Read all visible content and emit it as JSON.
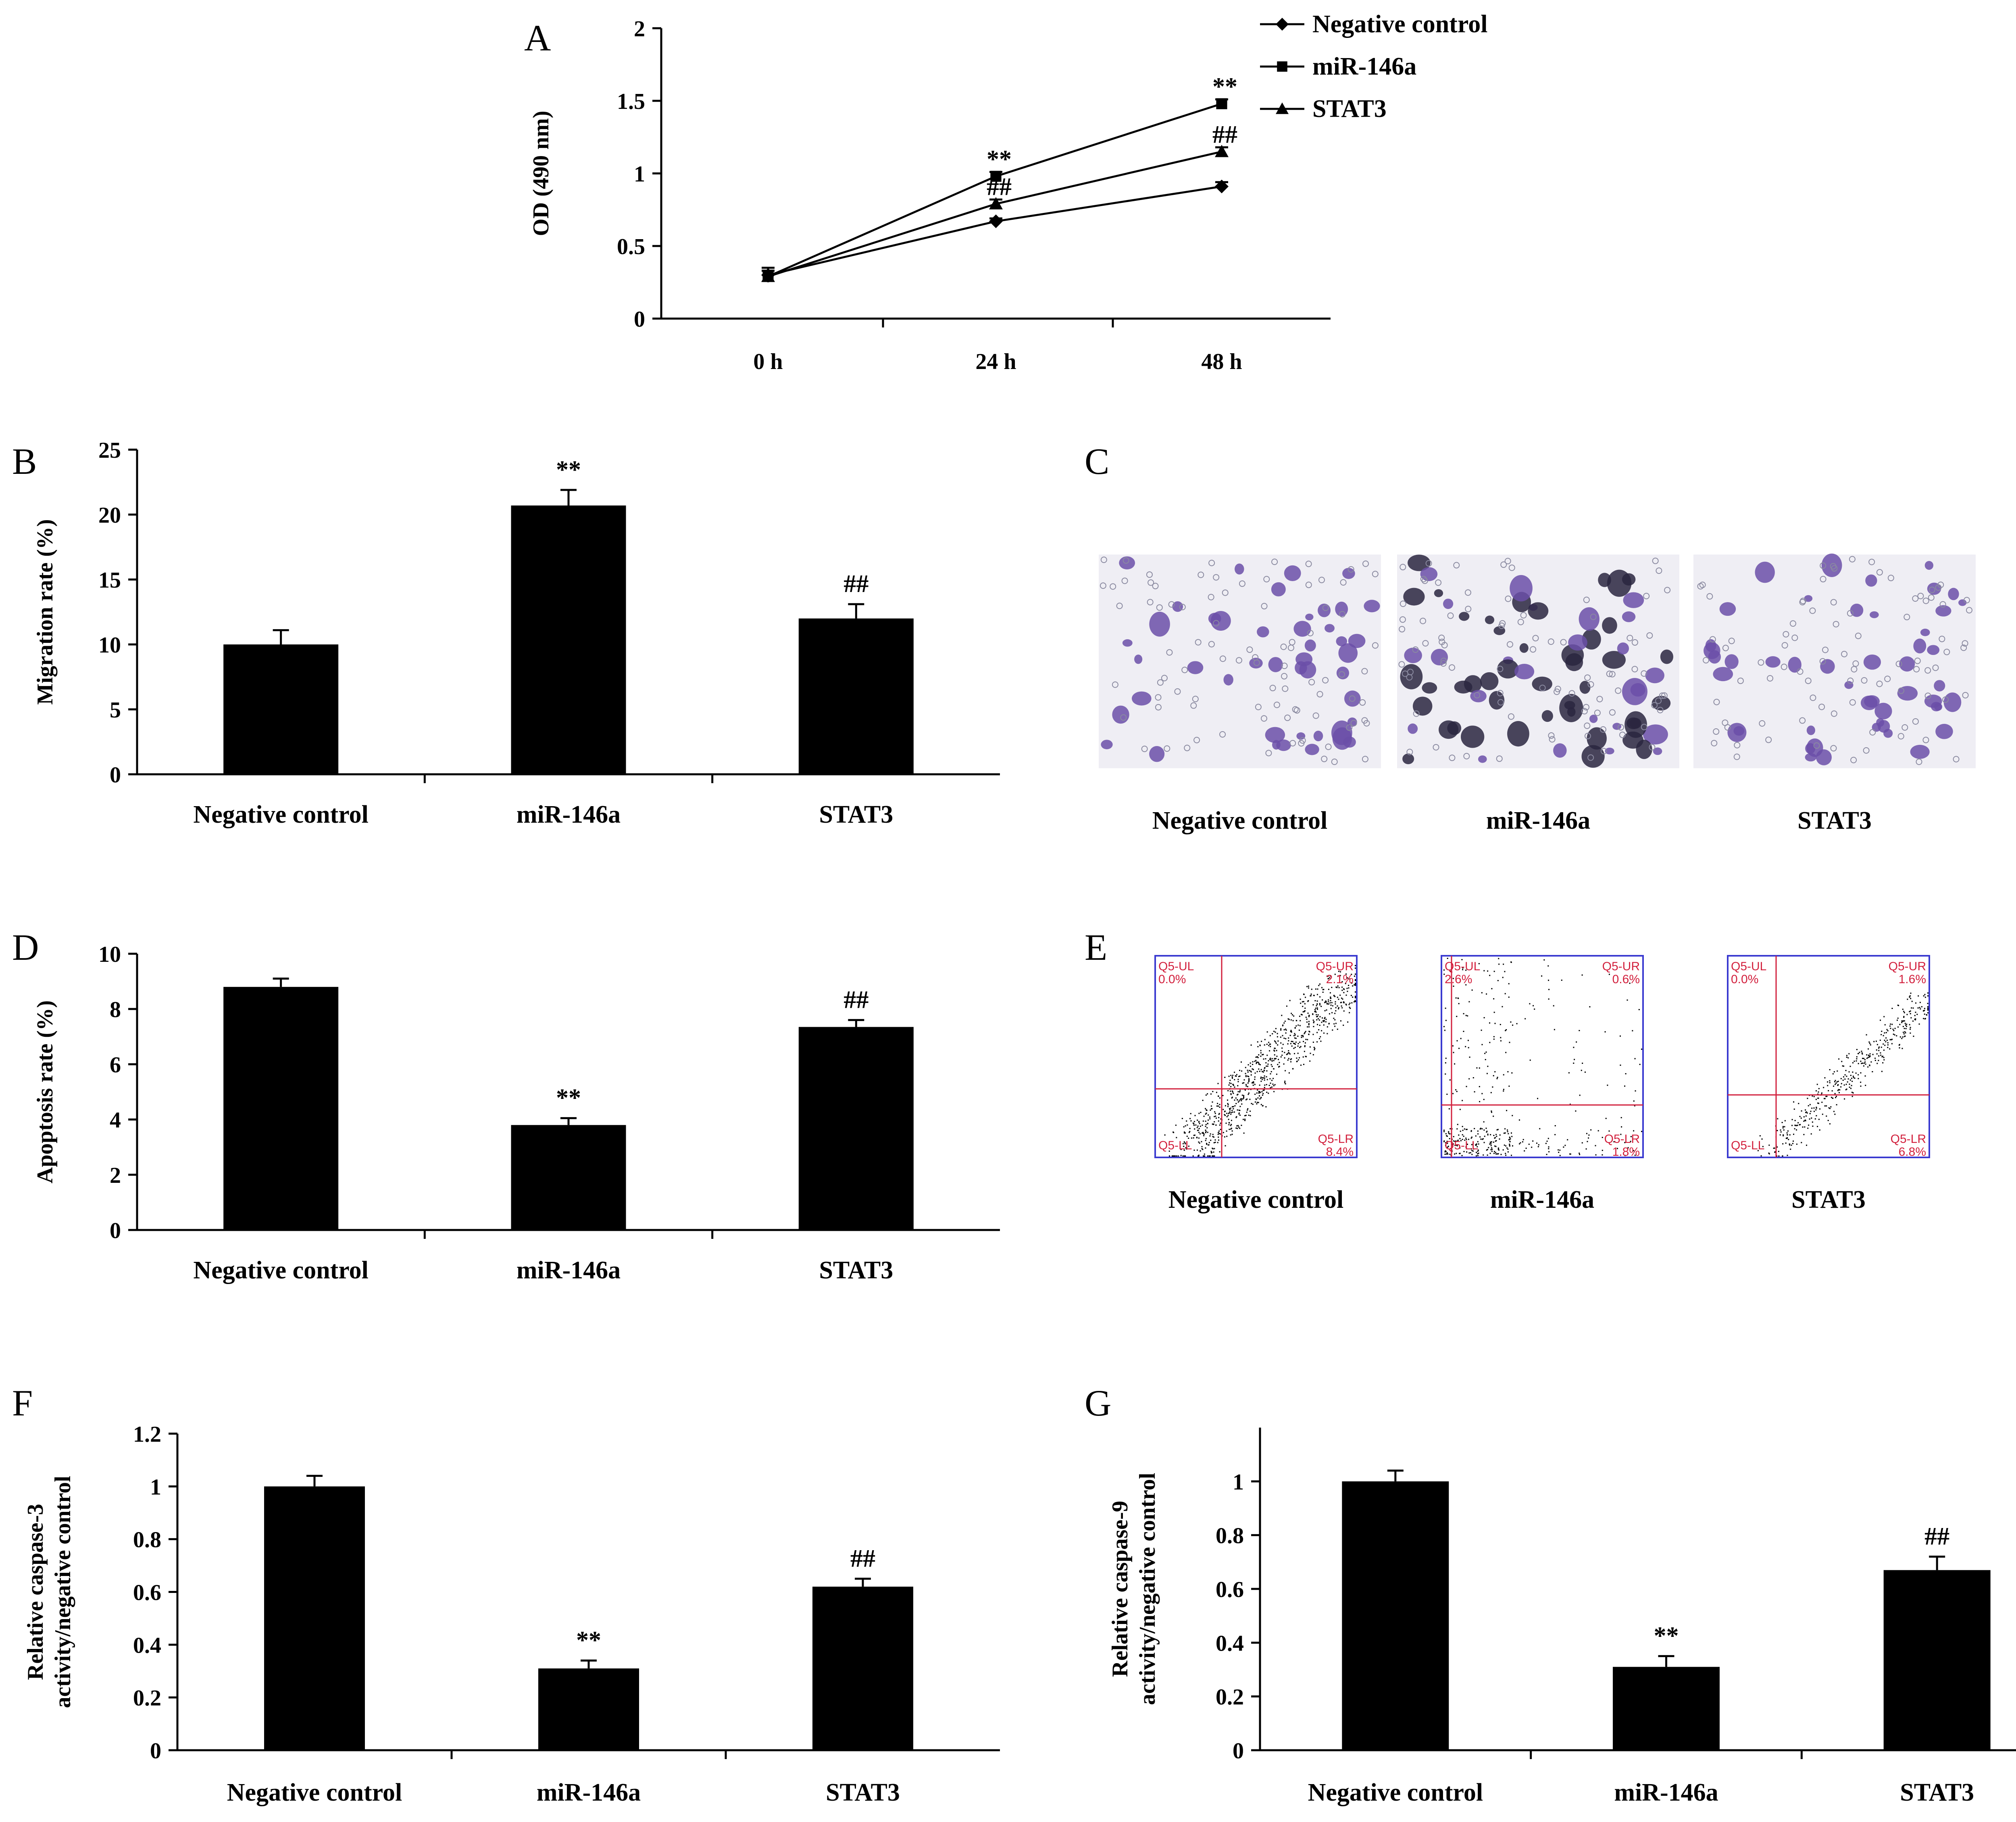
{
  "chart_data": [
    {
      "panel": "A",
      "type": "line",
      "ylabel": "OD (490 nm)",
      "xlabel": "",
      "categories": [
        "0 h",
        "24 h",
        "48 h"
      ],
      "ylim": [
        0,
        2
      ],
      "yticks": [
        0,
        0.5,
        1,
        1.5,
        2
      ],
      "legend_position": "top-right",
      "series": [
        {
          "name": "Negative control",
          "marker": "diamond",
          "values": [
            0.3,
            0.67,
            0.91
          ],
          "errors": [
            0.05,
            0.02,
            0.03
          ],
          "sig": [
            "",
            "",
            ""
          ]
        },
        {
          "name": "miR-146a",
          "marker": "square",
          "values": [
            0.29,
            0.98,
            1.48
          ],
          "errors": [
            0.04,
            0.03,
            0.03
          ],
          "sig": [
            "",
            "**",
            "**"
          ]
        },
        {
          "name": "STAT3",
          "marker": "triangle",
          "values": [
            0.29,
            0.79,
            1.15
          ],
          "errors": [
            0.04,
            0.03,
            0.03
          ],
          "sig": [
            "",
            "##",
            "##"
          ]
        }
      ]
    },
    {
      "panel": "B",
      "type": "bar",
      "ylabel": "Migration rate (%)",
      "xlabel": "",
      "categories": [
        "Negative control",
        "miR-146a",
        "STAT3"
      ],
      "values": [
        10.0,
        20.7,
        12.0
      ],
      "errors": [
        1.1,
        1.2,
        1.1
      ],
      "sig": [
        "",
        "**",
        "##"
      ],
      "ylim": [
        0,
        25
      ],
      "yticks": [
        0,
        5,
        10,
        15,
        20,
        25
      ]
    },
    {
      "panel": "D",
      "type": "bar",
      "ylabel": "Apoptosis rate (%)",
      "xlabel": "",
      "categories": [
        "Negative control",
        "miR-146a",
        "STAT3"
      ],
      "values": [
        8.8,
        3.8,
        7.35
      ],
      "errors": [
        0.3,
        0.25,
        0.25
      ],
      "sig": [
        "",
        "**",
        "##"
      ],
      "ylim": [
        0,
        10
      ],
      "yticks": [
        0,
        2,
        4,
        6,
        8,
        10
      ]
    },
    {
      "panel": "F",
      "type": "bar",
      "ylabel": "Relative caspase-3 activity/negative control",
      "xlabel": "",
      "categories": [
        "Negative control",
        "miR-146a",
        "STAT3"
      ],
      "values": [
        1.0,
        0.31,
        0.62
      ],
      "errors": [
        0.04,
        0.03,
        0.03
      ],
      "sig": [
        "",
        "**",
        "##"
      ],
      "ylim": [
        0,
        1.2
      ],
      "yticks": [
        0,
        0.2,
        0.4,
        0.6,
        0.8,
        1,
        1.2
      ]
    },
    {
      "panel": "G",
      "type": "bar",
      "ylabel": "Relative caspase-9 activity/negative control",
      "xlabel": "",
      "categories": [
        "Negative control",
        "miR-146a",
        "STAT3"
      ],
      "values": [
        1.0,
        0.31,
        0.67
      ],
      "errors": [
        0.04,
        0.04,
        0.05
      ],
      "sig": [
        "",
        "**",
        "##"
      ],
      "ylim": [
        0,
        1.2
      ],
      "yticks": [
        0,
        0.2,
        0.4,
        0.6,
        0.8,
        1
      ]
    }
  ],
  "panel_c": {
    "letter": "C",
    "labels": [
      "Negative control",
      "miR-146a",
      "STAT3"
    ],
    "image_colors": {
      "background": "#efeef4",
      "cell": "#6b4fa8",
      "dark_cell": "#2a2640"
    }
  },
  "panel_e": {
    "letter": "E",
    "labels": [
      "Negative control",
      "miR-146a",
      "STAT3"
    ],
    "quadrant_color": "#d21f3c",
    "frame_color": "#3a3ad0",
    "plots": [
      {
        "UL": "Q5-UL\n0.0%",
        "UR": "Q5-UR\n2.1%",
        "LL": "Q5-LL",
        "LR": "Q5-LR\n8.4%"
      },
      {
        "UL": "Q5-UL\n2.6%",
        "UR": "Q5-UR\n0.6%",
        "LL": "Q5-LL",
        "LR": "Q5-LR\n1.8%"
      },
      {
        "UL": "Q5-UL\n0.0%",
        "UR": "Q5-UR\n1.6%",
        "LL": "Q5-LL",
        "LR": "Q5-LR\n6.8%"
      }
    ]
  }
}
